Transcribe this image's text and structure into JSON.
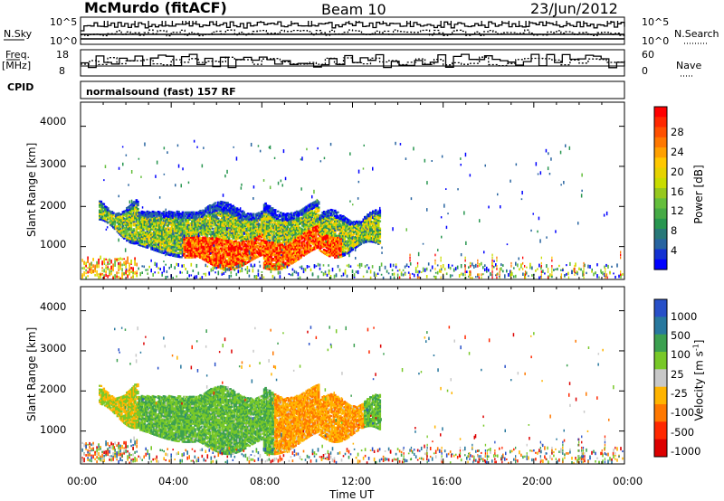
{
  "header": {
    "title": "McMurdo (fitACF)",
    "beam": "Beam 10",
    "date": "23/Jun/2012"
  },
  "panels": {
    "nsky_label": "N.Sky",
    "nsky_ticks": [
      "10^5",
      "10^0"
    ],
    "nsearch_label": "N.Search",
    "nsearch_ticks": [
      "10^5",
      "10^0"
    ],
    "freq_label": "Freq.",
    "freq_unit": "[MHz]",
    "freq_ticks": [
      "18",
      "8"
    ],
    "nave_label": "Nave",
    "nave_ticks": [
      "60",
      "0"
    ],
    "cpid_label": "CPID",
    "cpid_text": "normalsound (fast) 157 RF"
  },
  "chart_data": [
    {
      "type": "heatmap",
      "parameter": "Power",
      "xlabel": "",
      "ylabel": "Slant Range [km]",
      "y_ticks": [
        "4000",
        "3000",
        "2000",
        "1000"
      ],
      "ylim": [
        180,
        4600
      ],
      "colorbar_label": "Power [dB]",
      "colorbar_ticks": [
        "28",
        "24",
        "20",
        "16",
        "12",
        "8",
        "4"
      ],
      "colorbar_range": [
        0,
        32
      ],
      "colors": [
        "#ff0000",
        "#ff7800",
        "#ffc800",
        "#c8dc00",
        "#64be3c",
        "#289650",
        "#2864a0",
        "#0000ff"
      ],
      "x": [
        "00:00",
        "04:00",
        "08:00",
        "12:00",
        "16:00",
        "20:00",
        "00:00"
      ]
    },
    {
      "type": "heatmap",
      "parameter": "Velocity",
      "xlabel": "Time UT",
      "ylabel": "Slant Range [km]",
      "y_ticks": [
        "4000",
        "3000",
        "2000",
        "1000"
      ],
      "ylim": [
        180,
        4600
      ],
      "colorbar_label": "Velocity [m s^-1]",
      "colorbar_ticks": [
        "1000",
        "500",
        "100",
        "25",
        "-25",
        "-100",
        "-500",
        "-1000"
      ],
      "colors": [
        "#2850c8",
        "#28789e",
        "#3ca050",
        "#78c828",
        "#c8c8c8",
        "#ffb400",
        "#ff7800",
        "#ff2800",
        "#dc0000"
      ],
      "x_ticks": [
        "00:00",
        "04:00",
        "08:00",
        "12:00",
        "16:00",
        "20:00",
        "00:00"
      ],
      "xlim": [
        "00:00",
        "24:00"
      ]
    }
  ]
}
